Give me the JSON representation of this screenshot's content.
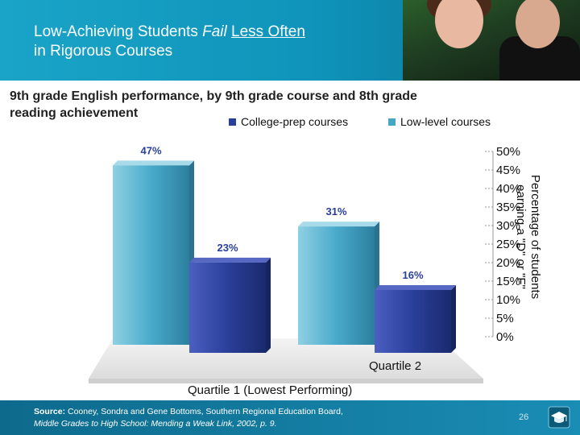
{
  "slide": {
    "title_pre": "Low-Achieving Students ",
    "title_fail": "Fail",
    "title_mid": " ",
    "title_less": "Less Often",
    "title_line2": "in Rigorous Courses",
    "subtitle": "9th grade English performance, by 9th grade course and 8th grade reading achievement",
    "source_label": "Source:",
    "source_text": " Cooney, Sondra and Gene Bottoms, Southern Regional Education Board,",
    "source_line2": "Middle Grades to High School: Mending a Weak Link, 2002, p. 9.",
    "page_number": "26",
    "logo_icon": "graduation-cap-icon"
  },
  "colors": {
    "header_bg": "#1aa4c8",
    "footer_bg": "#0d6a8c",
    "college_prep": "#45a7c4",
    "low_level": "#2a3f9a"
  },
  "chart_data": {
    "type": "bar",
    "categories": [
      "Quartile 1 (Lowest Performing)",
      "Quartile 2"
    ],
    "series": [
      {
        "name": "College-prep courses",
        "values": [
          47,
          31
        ],
        "labels": [
          "47%",
          "31%"
        ]
      },
      {
        "name": "Low-level courses",
        "values": [
          23,
          16
        ],
        "labels": [
          "23%",
          "16%"
        ]
      }
    ],
    "ylabel": "Percentage of students earning a \"D\" or \"F\"",
    "ylabel_line1": "Percentage of students",
    "ylabel_line2": "earning a \"D\" or \"F\"",
    "ylim": [
      0,
      50
    ],
    "ticks": [
      "0%",
      "5%",
      "10%",
      "15%",
      "20%",
      "25%",
      "30%",
      "35%",
      "40%",
      "45%",
      "50%"
    ],
    "legend_position": "top",
    "grid": true
  }
}
